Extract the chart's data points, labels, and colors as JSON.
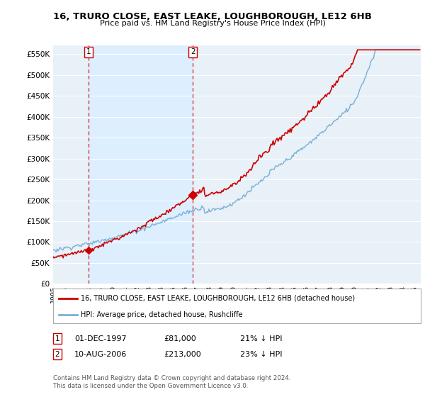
{
  "title": "16, TRURO CLOSE, EAST LEAKE, LOUGHBOROUGH, LE12 6HB",
  "subtitle": "Price paid vs. HM Land Registry's House Price Index (HPI)",
  "ylim": [
    0,
    570000
  ],
  "sale1_date": "01-DEC-1997",
  "sale1_price": 81000,
  "sale1_pct": "21% ↓ HPI",
  "sale2_date": "10-AUG-2006",
  "sale2_price": 213000,
  "sale2_pct": "23% ↓ HPI",
  "line_color_sold": "#cc0000",
  "line_color_hpi": "#7ab0d4",
  "shade_color": "#ddeeff",
  "legend_sold": "16, TRURO CLOSE, EAST LEAKE, LOUGHBOROUGH, LE12 6HB (detached house)",
  "legend_hpi": "HPI: Average price, detached house, Rushcliffe",
  "footer": "Contains HM Land Registry data © Crown copyright and database right 2024.\nThis data is licensed under the Open Government Licence v3.0.",
  "background_color": "#ffffff",
  "plot_bg_color": "#e8f0f8"
}
